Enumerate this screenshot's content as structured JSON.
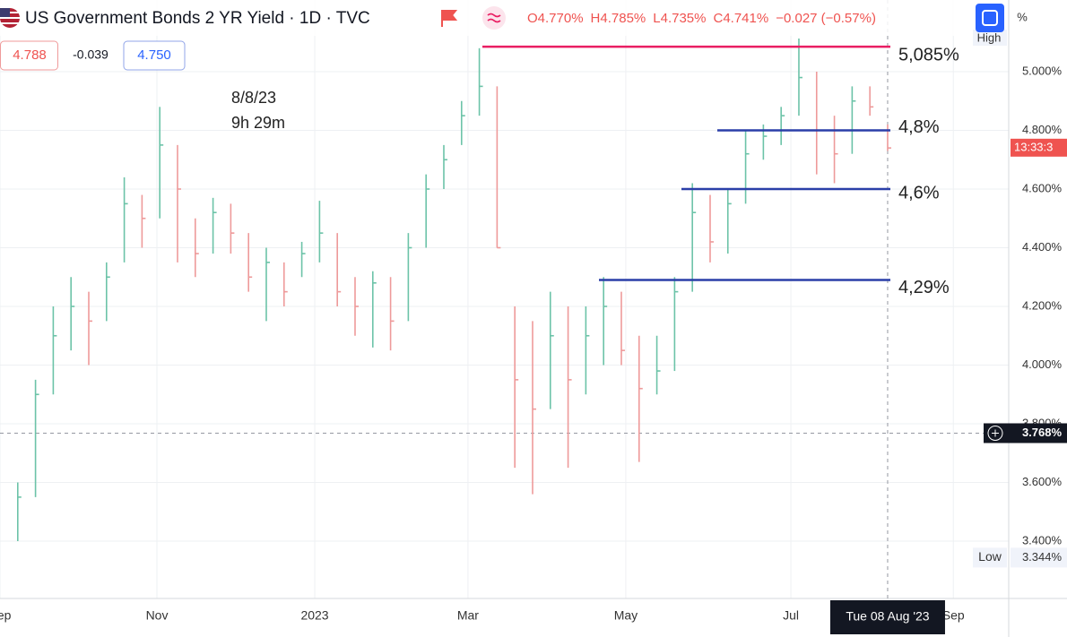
{
  "header": {
    "title": "US Government Bonds 2 YR Yield · 1D · TVC",
    "ohlc": [
      "O4.770%",
      "H4.785%",
      "L4.735%",
      "C4.741%",
      "−0.027 (−0.57%)"
    ],
    "sell": "4.788",
    "spread": "-0.039",
    "buy": "4.750",
    "percent_toggle": "%"
  },
  "chart_data": {
    "type": "ohlc",
    "annotation": [
      "8/8/23",
      "9h 29m"
    ],
    "close": [
      3.55,
      3.9,
      4.1,
      4.2,
      4.15,
      4.3,
      4.55,
      4.5,
      4.75,
      4.6,
      4.38,
      4.52,
      4.45,
      4.3,
      4.35,
      4.25,
      4.38,
      4.45,
      4.25,
      4.2,
      4.28,
      4.15,
      4.4,
      4.6,
      4.7,
      4.85,
      4.95,
      4.4,
      3.95,
      3.85,
      4.1,
      3.95,
      4.1,
      4.2,
      4.05,
      3.92,
      3.98,
      4.25,
      4.52,
      4.42,
      4.55,
      4.72,
      4.78,
      4.85,
      4.98,
      4.8,
      4.72,
      4.9,
      4.88,
      4.74
    ],
    "high": [
      3.6,
      3.95,
      4.2,
      4.3,
      4.25,
      4.35,
      4.64,
      4.58,
      4.88,
      4.75,
      4.5,
      4.57,
      4.55,
      4.45,
      4.4,
      4.35,
      4.42,
      4.56,
      4.45,
      4.3,
      4.32,
      4.3,
      4.45,
      4.65,
      4.75,
      4.9,
      5.08,
      4.95,
      4.2,
      4.15,
      4.25,
      4.2,
      4.2,
      4.3,
      4.25,
      4.1,
      4.1,
      4.3,
      4.62,
      4.58,
      4.6,
      4.8,
      4.82,
      4.88,
      5.113,
      5.0,
      4.85,
      4.95,
      4.95,
      4.82
    ],
    "low": [
      3.4,
      3.55,
      3.9,
      4.05,
      4.0,
      4.15,
      4.35,
      4.4,
      4.5,
      4.35,
      4.3,
      4.38,
      4.38,
      4.25,
      4.15,
      4.2,
      4.3,
      4.35,
      4.2,
      4.1,
      4.06,
      4.05,
      4.15,
      4.4,
      4.6,
      4.75,
      4.85,
      4.4,
      3.65,
      3.56,
      3.85,
      3.65,
      3.9,
      4.0,
      4.0,
      3.67,
      3.9,
      3.98,
      4.25,
      4.35,
      4.38,
      4.55,
      4.7,
      4.75,
      4.85,
      4.65,
      4.62,
      4.72,
      4.85,
      4.73
    ],
    "up_color": "#6cc3a8",
    "down_color": "#ee9a9a",
    "xlim": [
      0,
      56.82
    ],
    "xticks": [
      {
        "value": 0,
        "label": "Sep"
      },
      {
        "value": 8.84,
        "label": "Nov"
      },
      {
        "value": 17.73,
        "label": "2023"
      },
      {
        "value": 26.36,
        "label": "Mar"
      },
      {
        "value": 35.25,
        "label": "May"
      },
      {
        "value": 44.55,
        "label": "Jul"
      },
      {
        "value": 53.7,
        "label": "Sep"
      }
    ],
    "ylim": [
      3.2046,
      5.2443
    ],
    "yticks": [
      {
        "value": 3.4,
        "label": "3.400%"
      },
      {
        "value": 3.6,
        "label": "3.600%"
      },
      {
        "value": 3.8,
        "label": "3.800%"
      },
      {
        "value": 4.0,
        "label": "4.000%"
      },
      {
        "value": 4.2,
        "label": "4.200%"
      },
      {
        "value": 4.4,
        "label": "4.400%"
      },
      {
        "value": 4.6,
        "label": "4.600%"
      },
      {
        "value": 4.8,
        "label": "4.800%"
      },
      {
        "value": 5.0,
        "label": "5.000%"
      }
    ],
    "grid": true,
    "hlines": [
      {
        "value": 5.085,
        "label": "5,085%",
        "color": "#e91e63"
      },
      {
        "value": 4.8,
        "label": "4,8%",
        "color": "#2a3fa8"
      },
      {
        "value": 4.6,
        "label": "4,6%",
        "color": "#2a3fa8"
      },
      {
        "value": 4.29,
        "label": "4,29%",
        "color": "#2a3fa8"
      }
    ],
    "high_label": "High",
    "low_marker": {
      "name": "Low",
      "value": 3.344,
      "label": "3.344%"
    },
    "last": {
      "value": 4.741,
      "countdown": "13:33:3"
    },
    "crosshair": {
      "value": 3.768,
      "label": "3.768%",
      "x": 50,
      "date": "Tue 08 Aug '23"
    }
  }
}
